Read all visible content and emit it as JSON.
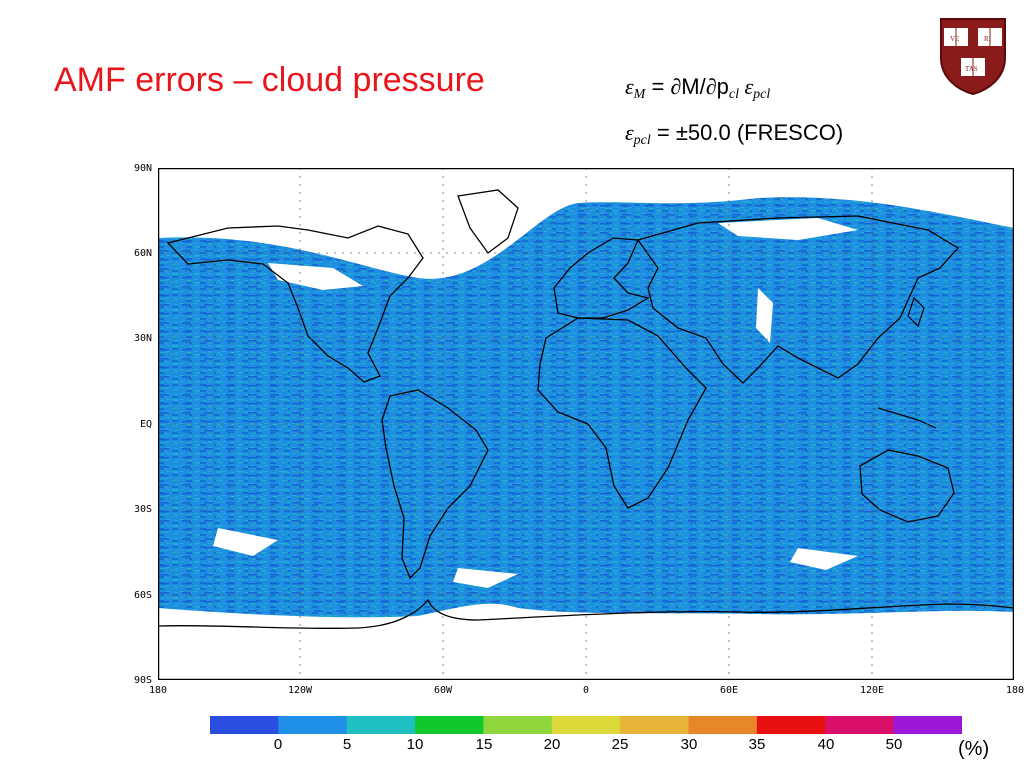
{
  "slide": {
    "title": "AMF errors – cloud pressure",
    "eq1": {
      "eps": "ε",
      "M": "M",
      "eqsign": " = ",
      "partial1": "∂",
      "Mtext": "M/",
      "partial2": "∂",
      "p": "p",
      "cl": "cl",
      "eps2": " ε",
      "pcl": "pcl"
    },
    "eq2": {
      "eps": "ε",
      "pcl": "pcl",
      "rest": " = ±50.0 (FRESCO)"
    }
  },
  "map": {
    "lat_labels": [
      "90N",
      "60N",
      "30N",
      "EQ",
      "30S",
      "60S",
      "90S"
    ],
    "lon_labels": [
      "180",
      "120W",
      "60W",
      "0",
      "60E",
      "120E",
      "180"
    ]
  },
  "colorbar": {
    "colors": [
      "#2a4fe0",
      "#1f8fe8",
      "#1fbfc2",
      "#10c82e",
      "#8ed63c",
      "#dcd83a",
      "#e8b43a",
      "#e8862a",
      "#e81010",
      "#d8106a",
      "#9c18d8"
    ],
    "tick_labels": [
      "0",
      "5",
      "10",
      "15",
      "20",
      "25",
      "30",
      "35",
      "40",
      "50"
    ],
    "unit": "(%)"
  },
  "logo": {
    "name": "harvard-shield",
    "book1": "VE",
    "book2": "RI",
    "book3": "TAS",
    "color": "#8b1a1a"
  }
}
